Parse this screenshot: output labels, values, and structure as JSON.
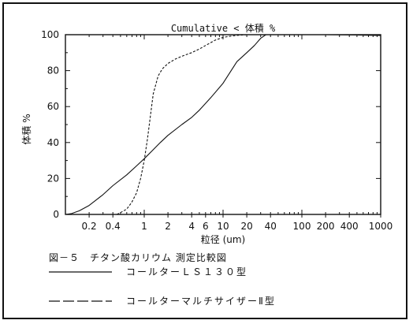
{
  "chart_data": {
    "type": "line",
    "title": "Cumulative < 体積 %",
    "xlabel": "粒径 (um)",
    "ylabel": "体積 %",
    "xscale": "log",
    "xlim": [
      0.1,
      1000
    ],
    "ylim": [
      0,
      100
    ],
    "x_ticks": [
      0.2,
      0.4,
      1,
      2,
      4,
      6,
      10,
      20,
      40,
      100,
      200,
      400,
      1000
    ],
    "x_tick_labels": [
      "0.2",
      "0.4",
      "1",
      "2",
      "4",
      "6",
      "10",
      "20",
      "40",
      "100",
      "200",
      "400",
      "1000"
    ],
    "y_ticks": [
      0,
      20,
      40,
      60,
      80,
      100
    ],
    "y_tick_labels": [
      "0",
      "20",
      "40",
      "60",
      "80",
      "100"
    ],
    "grid": false,
    "series": [
      {
        "name": "コールターＬＳ１３０型",
        "style": "solid",
        "x": [
          0.1,
          0.12,
          0.15,
          0.2,
          0.3,
          0.4,
          0.6,
          0.8,
          1,
          1.3,
          1.6,
          2,
          3,
          4,
          5,
          7,
          10,
          15,
          20,
          25,
          30,
          35,
          40,
          60,
          100,
          200,
          500,
          1000
        ],
        "y": [
          0,
          0.5,
          2,
          5,
          11,
          16,
          22,
          27,
          31,
          36,
          40,
          44,
          50,
          54,
          58,
          65,
          73,
          85,
          90,
          94,
          98,
          100,
          100,
          100,
          100,
          100,
          99.8,
          99.5
        ]
      },
      {
        "name": "コールターマルチサイザーⅡ型",
        "style": "dashed",
        "x": [
          0.45,
          0.5,
          0.55,
          0.6,
          0.65,
          0.7,
          0.8,
          0.9,
          1,
          1.1,
          1.2,
          1.3,
          1.5,
          1.7,
          2,
          2.5,
          3,
          4,
          5,
          6,
          8,
          10,
          13,
          16,
          20,
          25,
          30
        ],
        "y": [
          0,
          1,
          2,
          3,
          5,
          7,
          12,
          20,
          30,
          42,
          55,
          67,
          77,
          81,
          84,
          86.5,
          88,
          90,
          92,
          94,
          97,
          98.5,
          99.3,
          99.7,
          100,
          100,
          100
        ]
      }
    ]
  },
  "caption": {
    "figure_title": "図－５　チタン酸カリウム 測定比較図",
    "legend_solid": "コールターＬＳ１３０型",
    "legend_dashed": "コールターマルチサイザーⅡ型"
  }
}
